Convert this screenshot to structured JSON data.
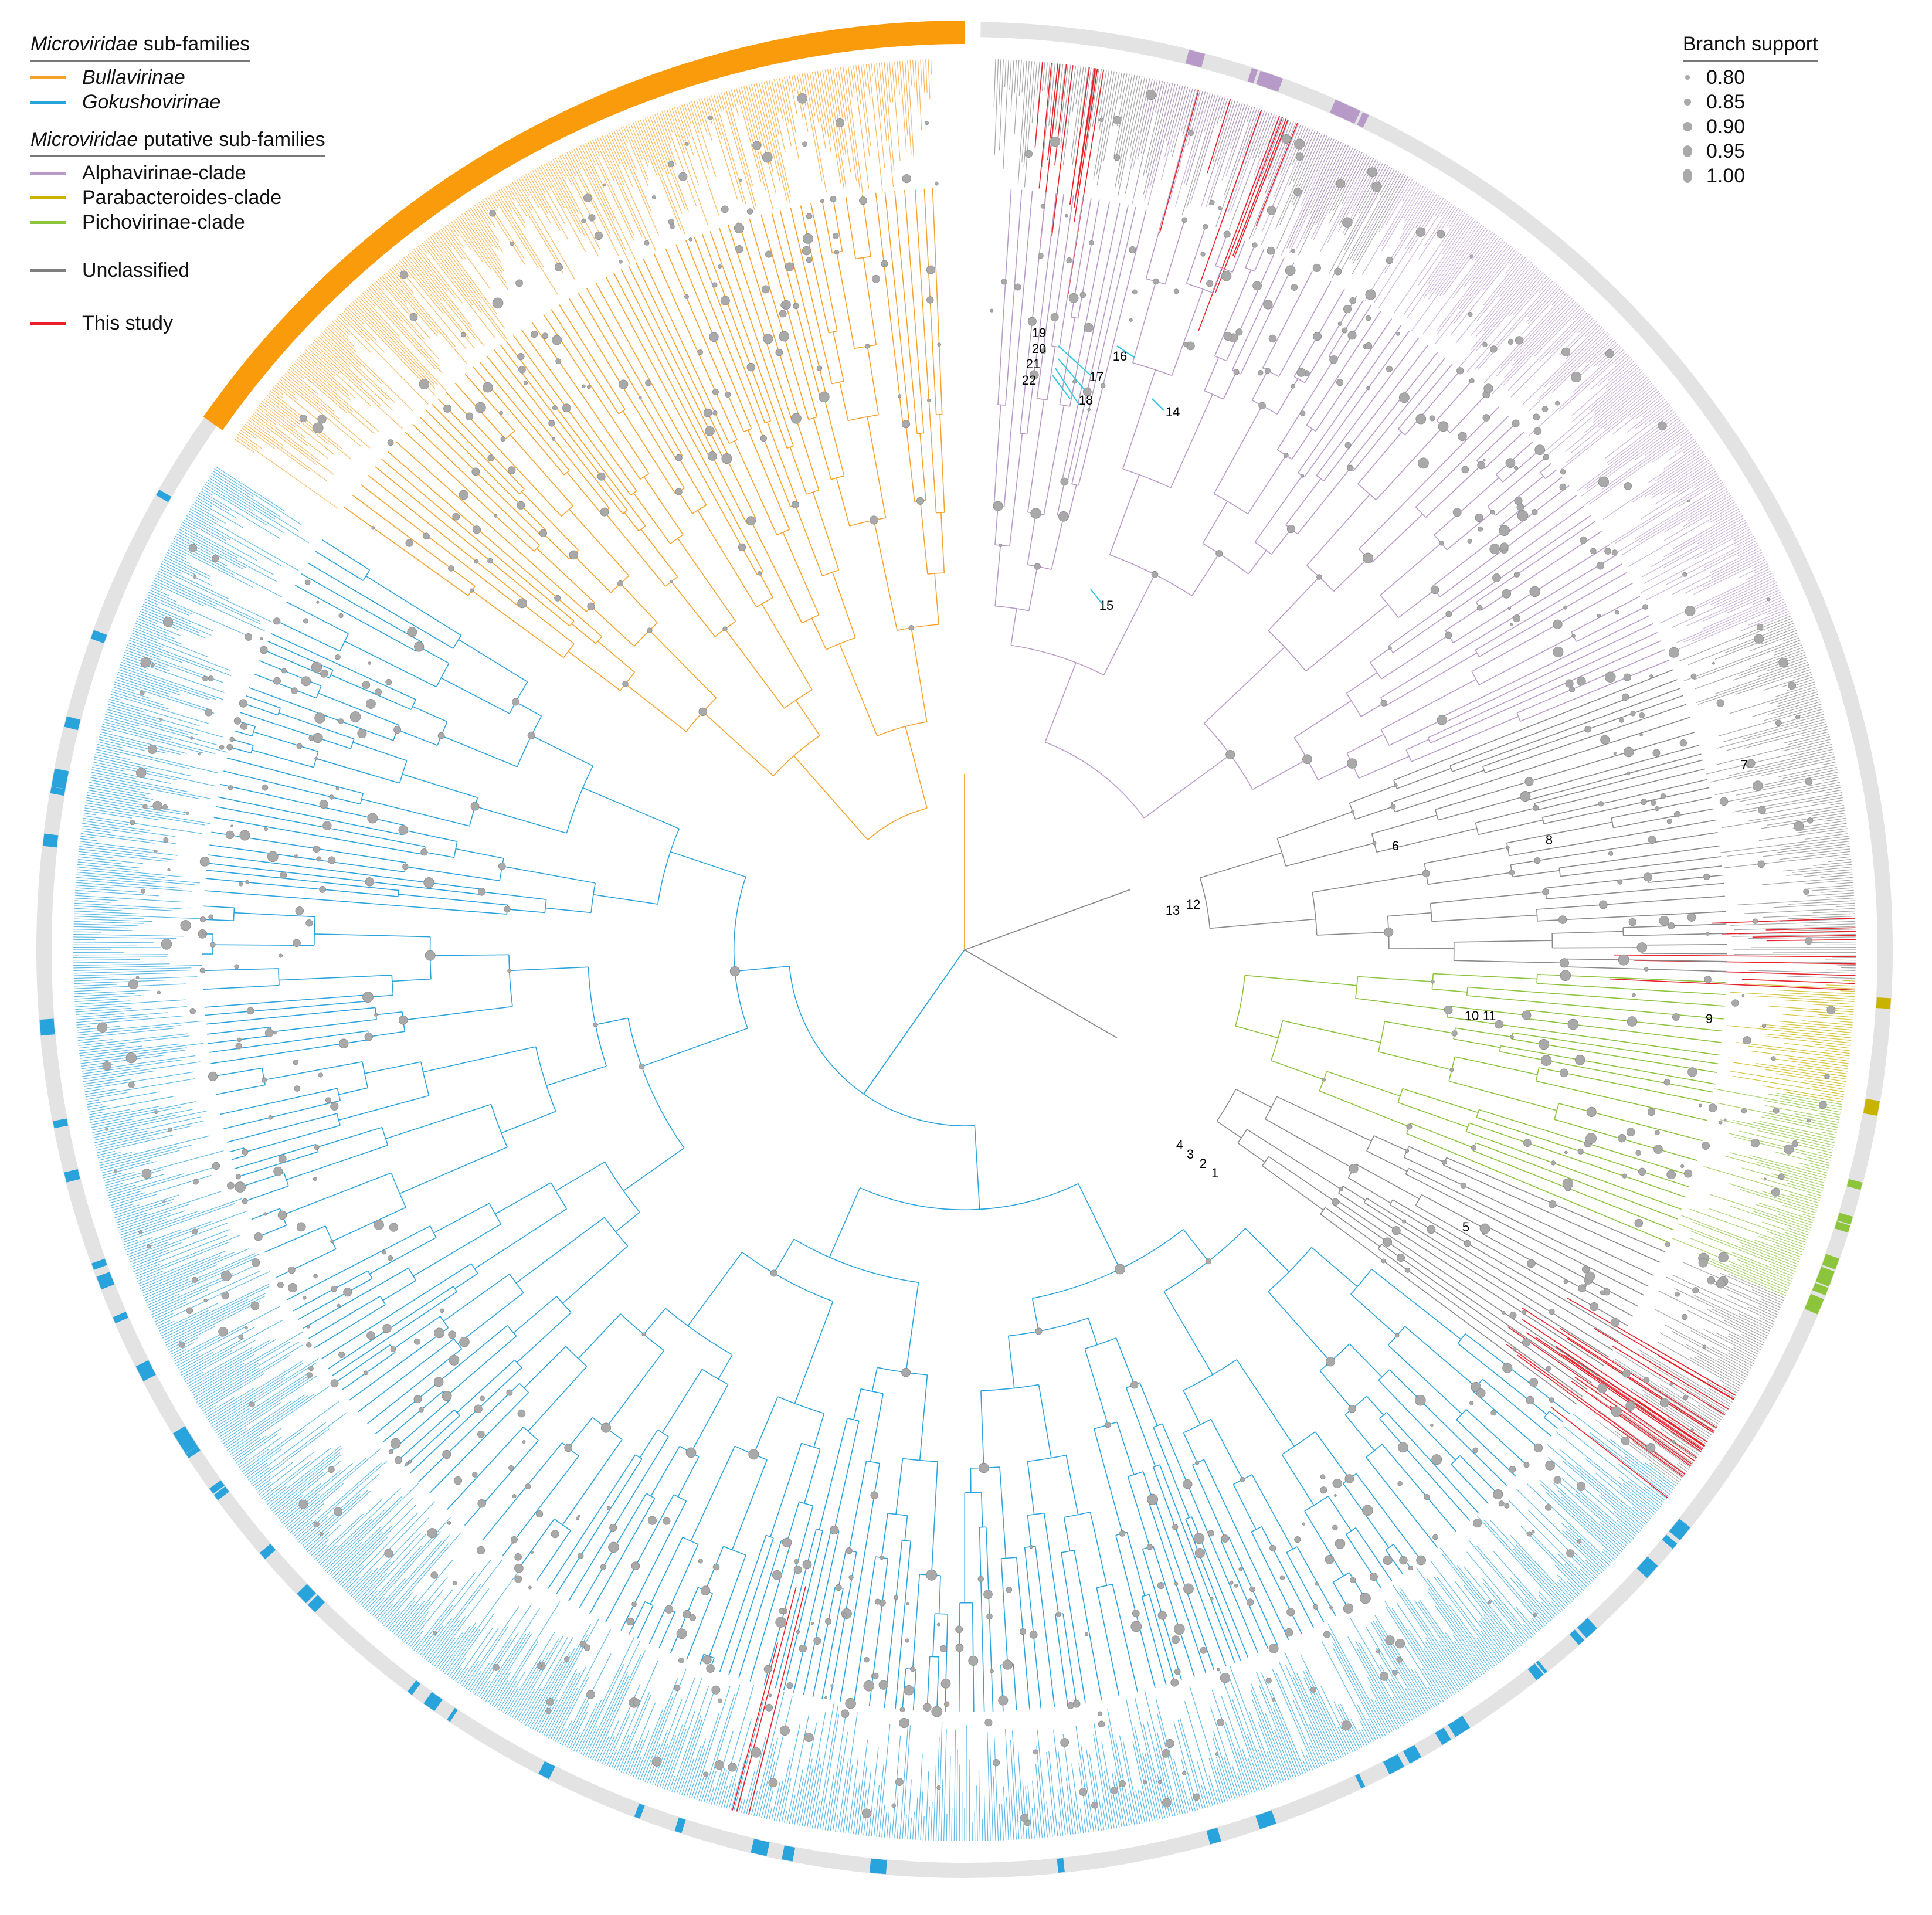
{
  "legend": {
    "subfamilies_heading_italic": "Microviridae",
    "subfamilies_heading_rest": " sub-families",
    "subfamilies": [
      {
        "label": "Bullavirinae",
        "color": "#f5a22c",
        "italic": true
      },
      {
        "label": "Gokushovirinae",
        "color": "#29a3dc",
        "italic": true
      }
    ],
    "putative_heading_italic": "Microviridae",
    "putative_heading_rest": " putative sub-families",
    "putative": [
      {
        "label": "Alphavirinae-clade",
        "color": "#b89ac8"
      },
      {
        "label": "Parabacteroides-clade",
        "color": "#c8b400"
      },
      {
        "label": "Pichovirinae-clade",
        "color": "#8cc43c"
      }
    ],
    "unclassified": {
      "label": "Unclassified",
      "color": "#7f7f7f"
    },
    "this_study": {
      "label": "This study",
      "color": "#e8202a"
    }
  },
  "branch_support": {
    "title": "Branch support",
    "values": [
      "0.80",
      "0.85",
      "0.90",
      "0.95",
      "1.00"
    ]
  },
  "colors": {
    "bullavirinae": "#f5a22c",
    "bullavirinae_ring": "#f99b0a",
    "gokushovirinae": "#29a3dc",
    "alphavirinae": "#b89ac8",
    "parabacteroides": "#c8b400",
    "pichovirinae": "#8cc43c",
    "unclassified": "#8a8a8a",
    "this_study": "#e8202a",
    "ring_background": "#e3e3e3",
    "support_dot": "#a9a9a9",
    "annotation_line": "#2ec7e0"
  },
  "node_labels": [
    "1",
    "2",
    "3",
    "4",
    "5",
    "6",
    "7",
    "8",
    "9",
    "10",
    "11",
    "12",
    "13",
    "14",
    "15",
    "16",
    "17",
    "18",
    "19",
    "20",
    "21",
    "22"
  ]
}
